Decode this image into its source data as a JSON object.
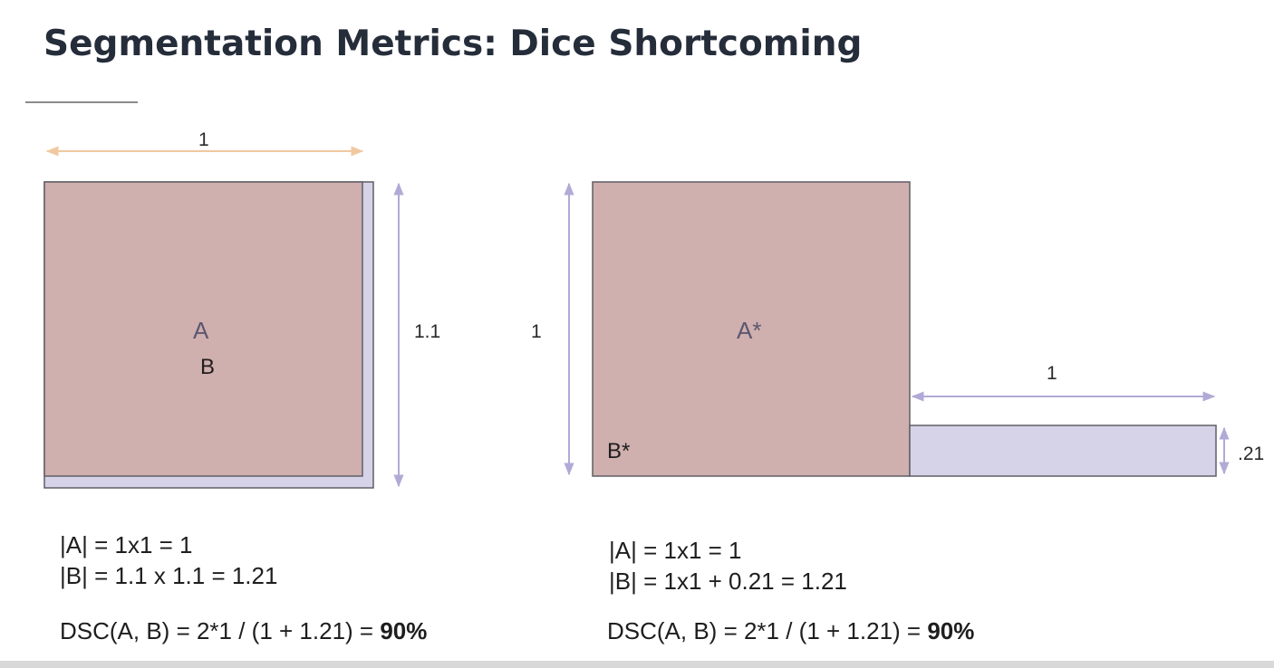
{
  "title": "Segmentation Metrics: Dice Shortcoming",
  "colors": {
    "a_fill": "#d0afaf",
    "b_fill": "#d6d3e8",
    "outline": "#5f5f66",
    "arrow_orange": "#f0c9a0",
    "arrow_lavender": "#b2aad6"
  },
  "left": {
    "top_dim": "1",
    "side_dim": "1.1",
    "label_a": "A",
    "label_b": "B",
    "formula_a": "|A| = 1x1 = 1",
    "formula_b": "|B| = 1.1 x 1.1 = 1.21",
    "dsc_prefix": "DSC(A, B) = 2*1 / (1 + 1.21) = ",
    "dsc_value": "90%"
  },
  "right": {
    "side_dim": "1",
    "strip_width_dim": "1",
    "strip_height_dim": ".21",
    "label_a": "A*",
    "label_b": "B*",
    "formula_a": "|A| = 1x1 = 1",
    "formula_b": "|B| = 1x1 + 0.21 = 1.21",
    "dsc_prefix": "DSC(A, B) = 2*1 / (1 + 1.21) = ",
    "dsc_value": "90%"
  }
}
